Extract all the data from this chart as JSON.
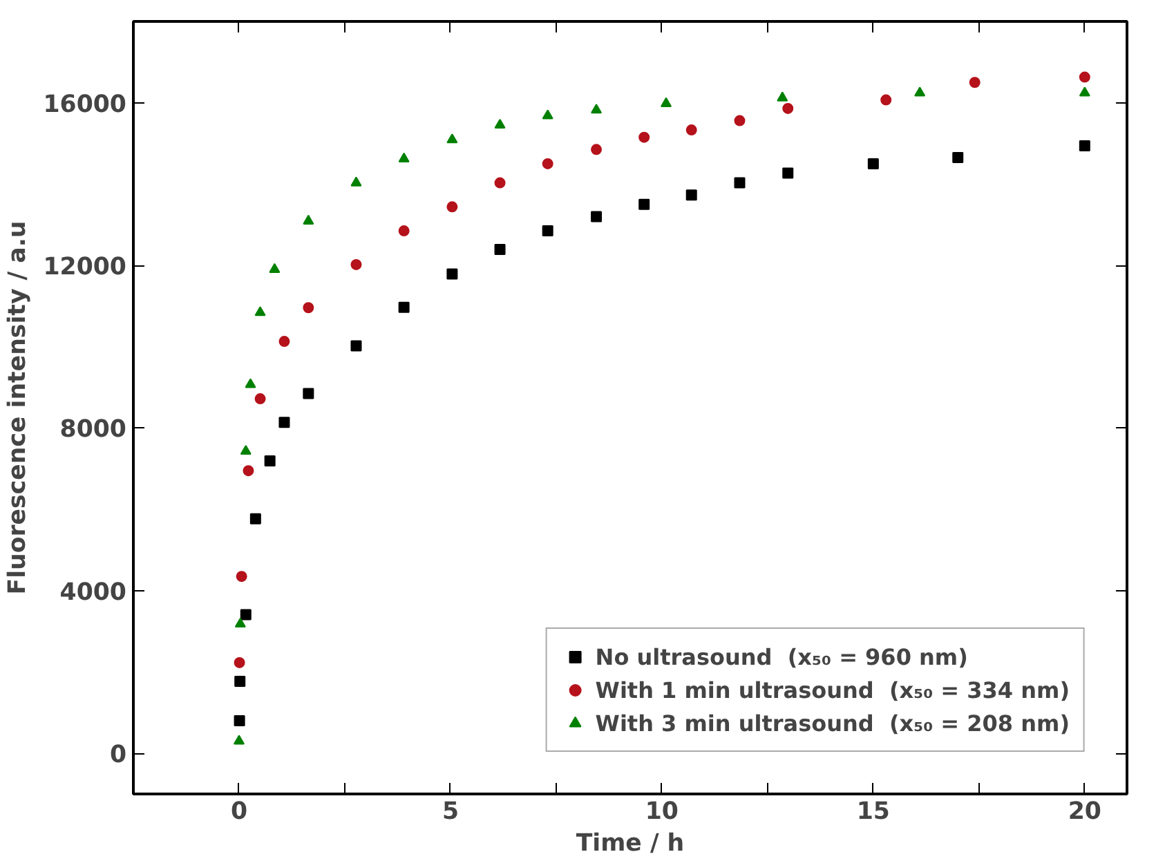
{
  "chart_data": {
    "type": "scatter",
    "xlabel": "Time / h",
    "ylabel": "Fluorescence intensity / a.u",
    "xlim": [
      -2.5,
      21
    ],
    "ylim": [
      -1000,
      18000
    ],
    "xticks": [
      0,
      {
        "value": 2.5,
        "label": null
      },
      5,
      {
        "value": 7.5,
        "label": null
      },
      10,
      {
        "value": 12.5,
        "label": null
      },
      15,
      {
        "value": 17.5,
        "label": null
      },
      20
    ],
    "yticks": [
      0,
      4000,
      8000,
      12000,
      16000
    ],
    "grid": false,
    "legend": "bottom right",
    "series": [
      {
        "name": "No ultrasound  (x₅₀ = 960 nm)",
        "color": "#000000",
        "marker": "square",
        "x": [
          0.01,
          0.02,
          0.16,
          0.39,
          0.73,
          1.07,
          1.64,
          2.77,
          3.9,
          5.04,
          6.17,
          7.3,
          8.45,
          9.58,
          10.7,
          11.84,
          12.98,
          15,
          17,
          20
        ],
        "values": [
          800,
          1770,
          3410,
          5770,
          7190,
          8140,
          8850,
          10020,
          10970,
          11790,
          12390,
          12850,
          13200,
          13500,
          13730,
          14030,
          14270,
          14500,
          14650,
          14940
        ]
      },
      {
        "name": "With 1 min ultrasound  (x₅₀ = 334 nm)",
        "color": "#b5121b",
        "marker": "circle",
        "x": [
          0.01,
          0.06,
          0.22,
          0.5,
          1.07,
          1.64,
          2.77,
          3.9,
          5.04,
          6.17,
          7.3,
          8.45,
          9.58,
          10.7,
          11.84,
          12.98,
          15.3,
          17.4,
          20
        ],
        "values": [
          2230,
          4350,
          6950,
          8720,
          10130,
          10960,
          12020,
          12850,
          13440,
          14030,
          14500,
          14850,
          15150,
          15330,
          15560,
          15860,
          16070,
          16500,
          16630
        ]
      },
      {
        "name": "With 3 min ultrasound  (x₅₀ = 208 nm)",
        "color": "#008000",
        "marker": "triangle",
        "x": [
          0,
          0.03,
          0.16,
          0.27,
          0.5,
          0.84,
          1.64,
          2.77,
          3.9,
          5.04,
          6.17,
          7.3,
          8.45,
          10.1,
          12.85,
          16.1,
          20
        ],
        "values": [
          300,
          3180,
          7430,
          9070,
          10840,
          11900,
          13090,
          14030,
          14620,
          15090,
          15450,
          15680,
          15820,
          15980,
          16120,
          16240,
          16240
        ]
      }
    ]
  }
}
